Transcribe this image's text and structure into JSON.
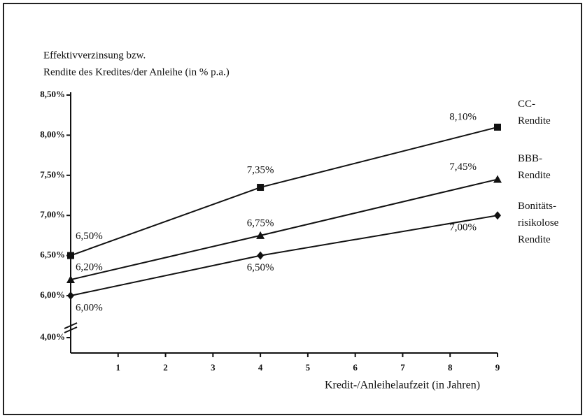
{
  "chart_data": {
    "type": "line",
    "title": [
      "Effektivverzinsung bzw.",
      "Rendite des Kredites/der Anleihe (in % p.a.)"
    ],
    "x_label": "Kredit-/Anleihelaufzeit (in Jahren)",
    "x": [
      0,
      4,
      9
    ],
    "xlim": [
      0,
      9
    ],
    "xticks": [
      1,
      2,
      3,
      4,
      5,
      6,
      7,
      8,
      9
    ],
    "ylim": [
      4,
      8.5
    ],
    "y_break": [
      4,
      6
    ],
    "yticks": [
      {
        "value": 4,
        "label": "4,00%"
      },
      {
        "value": 6,
        "label": "6,00%"
      },
      {
        "value": 6.5,
        "label": "6,50%"
      },
      {
        "value": 7,
        "label": "7,00%"
      },
      {
        "value": 7.5,
        "label": "7,50%"
      },
      {
        "value": 8,
        "label": "8,00%"
      },
      {
        "value": 8.5,
        "label": "8,50%"
      }
    ],
    "series": [
      {
        "name": "CC-\nRendite",
        "color": "#111111",
        "marker": "square",
        "values": [
          6.5,
          7.35,
          8.1
        ],
        "value_labels": [
          "6,50%",
          "7,35%",
          "8,10%"
        ]
      },
      {
        "name": "BBB-\nRendite",
        "color": "#111111",
        "marker": "triangle",
        "values": [
          6.2,
          6.75,
          7.45
        ],
        "value_labels": [
          "6,20%",
          "6,75%",
          "7,45%"
        ]
      },
      {
        "name": "Bonitäts-\nrisikolose\nRendite",
        "color": "#111111",
        "marker": "diamond",
        "values": [
          6.0,
          6.5,
          7.0
        ],
        "value_labels": [
          "6,00%",
          "6,50%",
          "7,00%"
        ]
      }
    ]
  }
}
